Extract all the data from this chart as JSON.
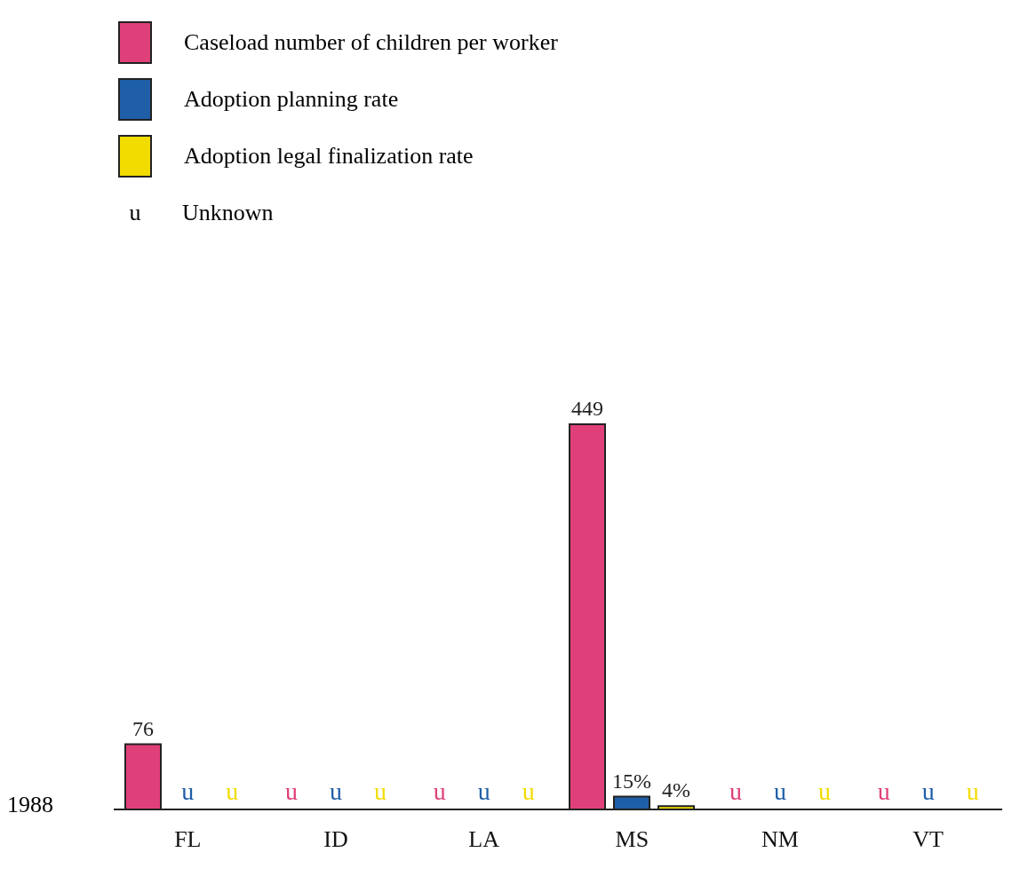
{
  "chart_data": {
    "type": "bar",
    "ylabel": "1988",
    "categories": [
      "FL",
      "ID",
      "LA",
      "MS",
      "NM",
      "VT"
    ],
    "series": [
      {
        "name": "Caseload number of children per worker",
        "color": "#e0407a",
        "values": [
          76,
          null,
          null,
          449,
          null,
          null
        ],
        "value_labels": [
          "76",
          "u",
          "u",
          "449",
          "u",
          "u"
        ]
      },
      {
        "name": "Adoption planning rate",
        "color": "#1f5fa8",
        "values": [
          null,
          null,
          null,
          15,
          null,
          null
        ],
        "value_labels": [
          "u",
          "u",
          "u",
          "15%",
          "u",
          "u"
        ]
      },
      {
        "name": "Adoption legal finalization rate",
        "color": "#f2dc00",
        "values": [
          null,
          null,
          null,
          4,
          null,
          null
        ],
        "value_labels": [
          "u",
          "u",
          "u",
          "4%",
          "u",
          "u"
        ]
      }
    ],
    "annotations": [
      "u",
      "Unknown"
    ],
    "legend": "top left",
    "grid": false
  }
}
